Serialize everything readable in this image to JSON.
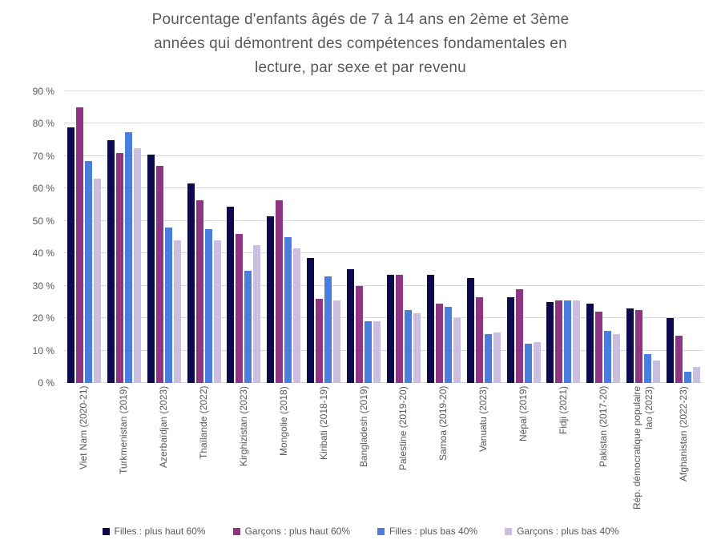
{
  "title_lines": [
    "Pourcentage d'enfants âgés de 7 à 14 ans en 2ème et 3ème",
    "années qui démontrent des compétences fondamentales en",
    "lecture, par sexe et par revenu"
  ],
  "chart_data": {
    "type": "bar",
    "title": "Pourcentage d'enfants âgés de 7 à 14 ans en 2ème et 3ème années qui démontrent des compétences fondamentales en lecture, par sexe et par revenu",
    "categories": [
      "Viet Nam (2020-21)",
      "Turkmenistan (2019)",
      "Azerbaïdjan (2023)",
      "Thaïlande (2022)",
      "Kirghizistan (2023)",
      "Mongolie (2018)",
      "Kiribati (2018-19)",
      "Bangladesh (2019)",
      "Palestine (2019-20)",
      "Samoa (2019-20)",
      "Vanuatu (2023)",
      "Népal (2019)",
      "Fidji (2021)",
      "Pakistan (2017-20)",
      "Rép. démocratique populaire lao (2023)",
      "Afghanistan (2022-23)"
    ],
    "series": [
      {
        "name": "Filles : plus haut 60%",
        "color": "#0D094D",
        "values": [
          79,
          75,
          70.5,
          61.5,
          54.5,
          51.5,
          38.5,
          35,
          33.5,
          33.5,
          32.5,
          26.5,
          25,
          24.5,
          23,
          20
        ]
      },
      {
        "name": "Garçons : plus haut 60%",
        "color": "#8E3683",
        "values": [
          85,
          71,
          67,
          56.5,
          46,
          56.5,
          26,
          30,
          33.5,
          24.5,
          26.5,
          29,
          25.5,
          22,
          22.5,
          14.5
        ]
      },
      {
        "name": "Filles : plus bas 40%",
        "color": "#4A7EDE",
        "values": [
          68.5,
          77.5,
          48,
          47.5,
          34.5,
          45,
          33,
          19,
          22.5,
          23.5,
          15,
          12,
          25.5,
          16,
          9,
          3.5
        ]
      },
      {
        "name": "Garçons : plus bas 40%",
        "color": "#CBBEE1",
        "values": [
          63,
          72.5,
          44,
          44,
          42.5,
          41.5,
          25.5,
          19,
          21.5,
          20,
          15.5,
          12.5,
          25.5,
          15,
          7,
          5
        ]
      }
    ],
    "y_axis": {
      "min": 0,
      "max": 90,
      "step": 10,
      "tick_labels": [
        "0 %",
        "10 %",
        "20 %",
        "30 %",
        "40 %",
        "50 %",
        "60 %",
        "70 %",
        "80 %",
        "90 %"
      ]
    },
    "grid": true,
    "legend_position": "bottom",
    "gridline_color": "#D9D9D9",
    "text_color": "#595959"
  }
}
